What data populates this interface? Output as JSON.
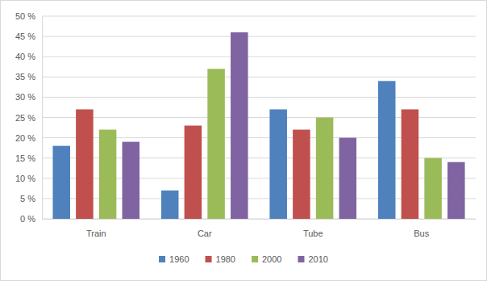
{
  "chart_data": {
    "type": "bar",
    "categories": [
      "Train",
      "Car",
      "Tube",
      "Bus"
    ],
    "series": [
      {
        "name": "1960",
        "color": "#4f81bd",
        "values": [
          18,
          7,
          27,
          34
        ]
      },
      {
        "name": "1980",
        "color": "#c0504d",
        "values": [
          27,
          23,
          22,
          27
        ]
      },
      {
        "name": "2000",
        "color": "#9bbb59",
        "values": [
          22,
          37,
          25,
          15
        ]
      },
      {
        "name": "2010",
        "color": "#8064a2",
        "values": [
          19,
          46,
          20,
          14
        ]
      }
    ],
    "ylim": [
      0,
      50
    ],
    "yticks": [
      {
        "value": 0,
        "label": "0 %"
      },
      {
        "value": 5,
        "label": "5 %"
      },
      {
        "value": 10,
        "label": "10 %"
      },
      {
        "value": 15,
        "label": "15 %"
      },
      {
        "value": 20,
        "label": "20 %"
      },
      {
        "value": 25,
        "label": "25 %"
      },
      {
        "value": 30,
        "label": "30 %"
      },
      {
        "value": 35,
        "label": "35 %"
      },
      {
        "value": 40,
        "label": "40 %"
      },
      {
        "value": 45,
        "label": "45 %"
      },
      {
        "value": 50,
        "label": "50 %"
      }
    ],
    "grid": true,
    "legend": "bottom"
  }
}
